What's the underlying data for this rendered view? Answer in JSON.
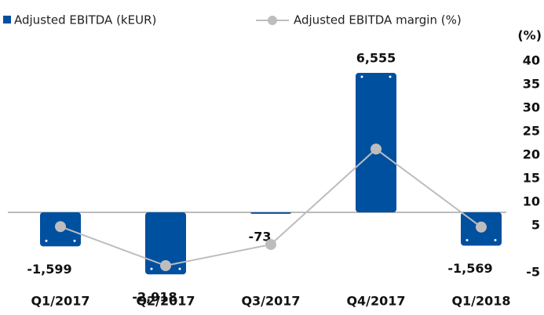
{
  "chart_data": {
    "type": "bar_line",
    "categories": [
      "Q1/2017",
      "Q2/2017",
      "Q3/2017",
      "Q4/2017",
      "Q1/2018"
    ],
    "series": [
      {
        "name": "Adjusted EBITDA (kEUR)",
        "color": "#0050a0",
        "type": "bar",
        "values": [
          -1599,
          -2918,
          -73,
          6555,
          -1569
        ],
        "value_labels": [
          "-1,599",
          "-2,918",
          "-73",
          "6,555",
          "-1,569"
        ]
      },
      {
        "name": "Adjusted EBITDA margin (%)",
        "color": "#bdbdbd",
        "type": "line",
        "axis": "y2",
        "values": [
          4.8,
          -3.5,
          1,
          21.3,
          4.7
        ]
      }
    ],
    "ylim": [
      -3280,
      7770
    ],
    "y2lim": [
      -7,
      43
    ],
    "y2label": "(%)",
    "y2ticks": [
      40,
      35,
      30,
      25,
      20,
      15,
      10,
      5,
      -5
    ],
    "legend": "top-left"
  }
}
